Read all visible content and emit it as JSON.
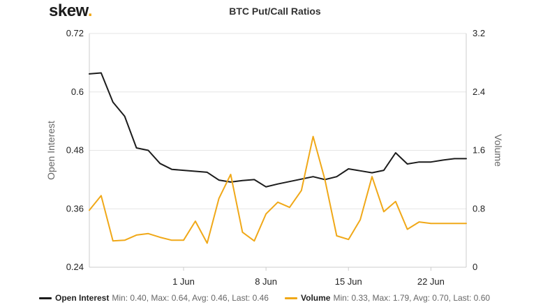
{
  "logo": {
    "text": "skew",
    "dot": "."
  },
  "chart_data": {
    "type": "line",
    "title": "BTC Put/Call Ratios",
    "ylabel_left": "Open Interest",
    "ylabel_right": "Volume",
    "ylim_left": [
      0.24,
      0.72
    ],
    "ylim_right": [
      0,
      3.2
    ],
    "yticks_left": [
      "0.24",
      "0.36",
      "0.48",
      "0.6",
      "0.72"
    ],
    "yticks_right": [
      "0",
      "0.8",
      "1.6",
      "2.4",
      "3.2"
    ],
    "x_start": "May 24",
    "x_end": "Jun 25",
    "xticks": [
      {
        "label": "1 Jun",
        "day": 8
      },
      {
        "label": "8 Jun",
        "day": 15
      },
      {
        "label": "15 Jun",
        "day": 22
      },
      {
        "label": "22 Jun",
        "day": 29
      }
    ],
    "grid": "horizontal",
    "legend_position": "bottom",
    "series": [
      {
        "name": "Open Interest",
        "axis": "left",
        "color": "#1c1c1c",
        "x": [
          "May 24",
          "May 25",
          "May 26",
          "May 27",
          "May 28",
          "May 29",
          "May 30",
          "May 31",
          "Jun 1",
          "Jun 2",
          "Jun 3",
          "Jun 4",
          "Jun 5",
          "Jun 6",
          "Jun 7",
          "Jun 8",
          "Jun 9",
          "Jun 10",
          "Jun 11",
          "Jun 12",
          "Jun 13",
          "Jun 14",
          "Jun 15",
          "Jun 16",
          "Jun 17",
          "Jun 18",
          "Jun 19",
          "Jun 20",
          "Jun 21",
          "Jun 22",
          "Jun 23",
          "Jun 24",
          "Jun 25"
        ],
        "values": [
          0.637,
          0.639,
          0.579,
          0.55,
          0.485,
          0.48,
          0.453,
          0.441,
          0.439,
          0.437,
          0.435,
          0.419,
          0.415,
          0.418,
          0.42,
          0.405,
          0.411,
          0.416,
          0.421,
          0.426,
          0.42,
          0.426,
          0.442,
          0.438,
          0.434,
          0.439,
          0.475,
          0.452,
          0.456,
          0.456,
          0.46,
          0.463,
          0.463
        ],
        "stats": "Min: 0.40, Max: 0.64, Avg: 0.46, Last: 0.46"
      },
      {
        "name": "Volume",
        "axis": "right",
        "color": "#f0a818",
        "x": [
          "May 24",
          "May 25",
          "May 26",
          "May 27",
          "May 28",
          "May 29",
          "May 30",
          "May 31",
          "Jun 1",
          "Jun 2",
          "Jun 3",
          "Jun 4",
          "Jun 5",
          "Jun 6",
          "Jun 7",
          "Jun 8",
          "Jun 9",
          "Jun 10",
          "Jun 11",
          "Jun 12",
          "Jun 13",
          "Jun 14",
          "Jun 15",
          "Jun 16",
          "Jun 17",
          "Jun 18",
          "Jun 19",
          "Jun 20",
          "Jun 21",
          "Jun 22",
          "Jun 23",
          "Jun 24",
          "Jun 25"
        ],
        "values": [
          0.78,
          0.98,
          0.36,
          0.37,
          0.44,
          0.46,
          0.41,
          0.37,
          0.37,
          0.63,
          0.33,
          0.94,
          1.27,
          0.48,
          0.36,
          0.73,
          0.89,
          0.82,
          1.05,
          1.79,
          1.2,
          0.43,
          0.38,
          0.65,
          1.24,
          0.76,
          0.9,
          0.52,
          0.62,
          0.6,
          0.6,
          0.6,
          0.6
        ],
        "stats": "Min: 0.33, Max: 1.79, Avg: 0.70, Last: 0.60"
      }
    ]
  }
}
